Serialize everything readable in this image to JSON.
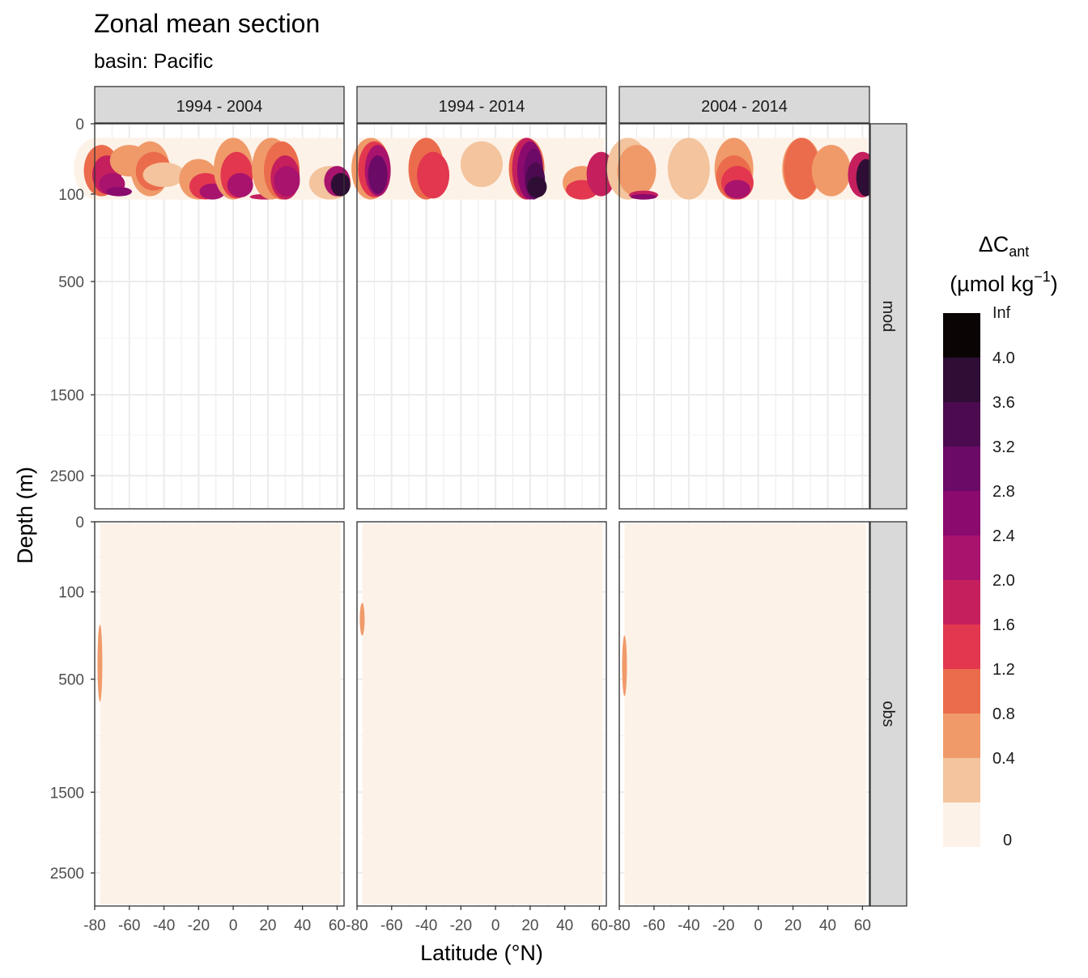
{
  "chart_data": {
    "type": "heatmap",
    "title": "Zonal mean section",
    "subtitle": "basin: Pacific",
    "xlabel": "Latitude (°N)",
    "ylabel": "Depth (m)",
    "x_ticks": [
      "-80",
      "-60",
      "-40",
      "-20",
      "0",
      "20",
      "40",
      "60"
    ],
    "y_ticks": [
      "0",
      "100",
      "500",
      "1500",
      "2500"
    ],
    "xlim": [
      -80,
      64
    ],
    "y_tick_values": [
      0,
      100,
      500,
      1500,
      2500
    ],
    "grid": true,
    "legend": {
      "position": "right",
      "title_main": "ΔC",
      "title_sub": "ant",
      "unit_main": "(µmol kg",
      "unit_sup": "−1",
      "unit_close": ")",
      "labels": [
        "Inf",
        "4.0",
        "3.6",
        "3.2",
        "2.8",
        "2.4",
        "2.0",
        "1.6",
        "1.2",
        "0.8",
        "0.4",
        "0"
      ],
      "colors": [
        "#0b0405",
        "#2e0e34",
        "#4c0b50",
        "#6c0a68",
        "#8b0a6e",
        "#a8136d",
        "#c51f5e",
        "#e2374f",
        "#eb6c4c",
        "#f09a6a",
        "#f3c49d",
        "#fdf2e8"
      ]
    },
    "col_facets": [
      "1994 - 2004",
      "1994 - 2014",
      "2004 - 2014"
    ],
    "row_facets": [
      "mod",
      "obs"
    ],
    "panels": {
      "mod": {
        "depth_range": [
          20,
          125
        ],
        "1994 - 2004": [
          {
            "lat": -79,
            "d1": 20,
            "d2": 125,
            "level": 0
          },
          {
            "lat": -76,
            "d1": 30,
            "d2": 110,
            "level": 3
          },
          {
            "lat": -73,
            "d1": 45,
            "d2": 100,
            "level": 5
          },
          {
            "lat": -70,
            "d1": 70,
            "d2": 105,
            "level": 6
          },
          {
            "lat": -66,
            "d1": 90,
            "d2": 110,
            "level": 7
          },
          {
            "lat": -60,
            "d1": 30,
            "d2": 75,
            "level": 2
          },
          {
            "lat": -48,
            "d1": 25,
            "d2": 110,
            "level": 2
          },
          {
            "lat": -46,
            "d1": 40,
            "d2": 95,
            "level": 3
          },
          {
            "lat": -40,
            "d1": 55,
            "d2": 90,
            "level": 1
          },
          {
            "lat": -20,
            "d1": 50,
            "d2": 125,
            "level": 2
          },
          {
            "lat": -16,
            "d1": 70,
            "d2": 125,
            "level": 4
          },
          {
            "lat": -12,
            "d1": 85,
            "d2": 125,
            "level": 6
          },
          {
            "lat": 0,
            "d1": 20,
            "d2": 125,
            "level": 2
          },
          {
            "lat": 2,
            "d1": 40,
            "d2": 120,
            "level": 4
          },
          {
            "lat": 4,
            "d1": 70,
            "d2": 115,
            "level": 6
          },
          {
            "lat": 18,
            "d1": 100,
            "d2": 125,
            "level": 5
          },
          {
            "lat": 22,
            "d1": 20,
            "d2": 125,
            "level": 2
          },
          {
            "lat": 28,
            "d1": 25,
            "d2": 125,
            "level": 3
          },
          {
            "lat": 30,
            "d1": 45,
            "d2": 125,
            "level": 5
          },
          {
            "lat": 31,
            "d1": 60,
            "d2": 110,
            "level": 6
          },
          {
            "lat": 56,
            "d1": 60,
            "d2": 125,
            "level": 1
          },
          {
            "lat": 60,
            "d1": 60,
            "d2": 110,
            "level": 6
          },
          {
            "lat": 62,
            "d1": 70,
            "d2": 110,
            "level": 10
          }
        ],
        "1994 - 2014": [
          {
            "lat": -72,
            "d1": 20,
            "d2": 125,
            "level": 2
          },
          {
            "lat": -70,
            "d1": 25,
            "d2": 115,
            "level": 4
          },
          {
            "lat": -68,
            "d1": 30,
            "d2": 110,
            "level": 6
          },
          {
            "lat": -68,
            "d1": 45,
            "d2": 100,
            "level": 8
          },
          {
            "lat": -40,
            "d1": 20,
            "d2": 125,
            "level": 3
          },
          {
            "lat": -36,
            "d1": 40,
            "d2": 120,
            "level": 4
          },
          {
            "lat": -8,
            "d1": 25,
            "d2": 90,
            "level": 1
          },
          {
            "lat": 18,
            "d1": 20,
            "d2": 125,
            "level": 3
          },
          {
            "lat": 18,
            "d1": 20,
            "d2": 125,
            "level": 5
          },
          {
            "lat": 20,
            "d1": 25,
            "d2": 125,
            "level": 7
          },
          {
            "lat": 22,
            "d1": 35,
            "d2": 125,
            "level": 8
          },
          {
            "lat": 23,
            "d1": 55,
            "d2": 120,
            "level": 9
          },
          {
            "lat": 24,
            "d1": 75,
            "d2": 115,
            "level": 10
          },
          {
            "lat": 50,
            "d1": 60,
            "d2": 125,
            "level": 2
          },
          {
            "lat": 50,
            "d1": 80,
            "d2": 125,
            "level": 4
          },
          {
            "lat": 61,
            "d1": 40,
            "d2": 110,
            "level": 5
          }
        ],
        "2004 - 2014": [
          {
            "lat": -75,
            "d1": 20,
            "d2": 125,
            "level": 1
          },
          {
            "lat": -70,
            "d1": 30,
            "d2": 110,
            "level": 2
          },
          {
            "lat": -66,
            "d1": 95,
            "d2": 125,
            "level": 5
          },
          {
            "lat": -66,
            "d1": 100,
            "d2": 125,
            "level": 7
          },
          {
            "lat": -40,
            "d1": 20,
            "d2": 125,
            "level": 1
          },
          {
            "lat": -14,
            "d1": 20,
            "d2": 125,
            "level": 2
          },
          {
            "lat": -14,
            "d1": 45,
            "d2": 125,
            "level": 3
          },
          {
            "lat": -12,
            "d1": 60,
            "d2": 125,
            "level": 4
          },
          {
            "lat": -12,
            "d1": 80,
            "d2": 120,
            "level": 6
          },
          {
            "lat": 25,
            "d1": 20,
            "d2": 125,
            "level": 2
          },
          {
            "lat": 25,
            "d1": 20,
            "d2": 125,
            "level": 3
          },
          {
            "lat": 42,
            "d1": 30,
            "d2": 110,
            "level": 2
          },
          {
            "lat": 60,
            "d1": 40,
            "d2": 115,
            "level": 5
          },
          {
            "lat": 62,
            "d1": 50,
            "d2": 110,
            "level": 10
          }
        ]
      },
      "obs": {
        "lat_range": [
          -77,
          62
        ],
        "1994 - 2004": [
          {
            "lat": -77,
            "d1": 250,
            "d2": 700,
            "level": 2
          }
        ],
        "1994 - 2014": [
          {
            "lat": -77,
            "d1": 150,
            "d2": 300,
            "level": 2
          }
        ],
        "2004 - 2014": [
          {
            "lat": -77,
            "d1": 300,
            "d2": 650,
            "level": 2
          }
        ]
      }
    }
  }
}
